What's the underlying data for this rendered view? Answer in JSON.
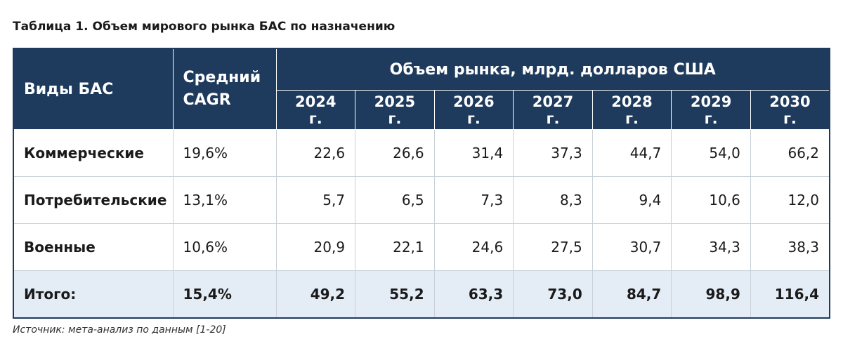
{
  "title": "Таблица 1. Объем мирового рынка БАС по назначению",
  "table": {
    "header": {
      "type_label": "Виды БАС",
      "cagr_label": "Средний CAGR",
      "group_label": "Объем рынка, млрд. долларов США",
      "years": [
        "2024 г.",
        "2025 г.",
        "2026 г.",
        "2027 г.",
        "2028 г.",
        "2029 г.",
        "2030 г."
      ]
    },
    "rows": [
      [
        "Коммерческие",
        "19,6%",
        "22,6",
        "26,6",
        "31,4",
        "37,3",
        "44,7",
        "54,0",
        "66,2"
      ],
      [
        "Потребительские",
        "13,1%",
        "5,7",
        "6,5",
        "7,3",
        "8,3",
        "9,4",
        "10,6",
        "12,0"
      ],
      [
        "Военные",
        "10,6%",
        "20,9",
        "22,1",
        "24,6",
        "27,5",
        "30,7",
        "34,3",
        "38,3"
      ]
    ],
    "total": [
      "Итого:",
      "15,4%",
      "49,2",
      "55,2",
      "63,3",
      "73,0",
      "84,7",
      "98,9",
      "116,4"
    ]
  },
  "source": "Источник: мета-анализ по данным [1-20]"
}
